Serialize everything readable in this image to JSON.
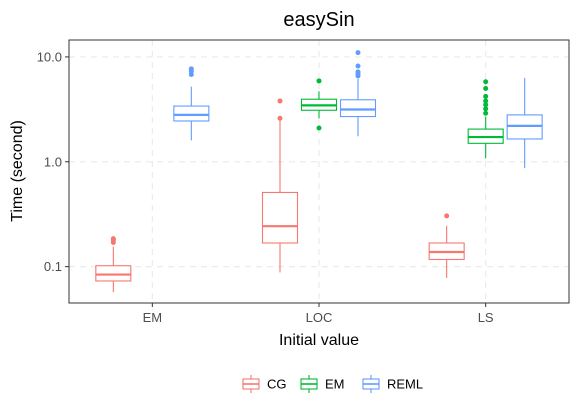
{
  "chart_data": {
    "type": "boxplot",
    "title": "easySin",
    "xlabel": "Initial value",
    "ylabel": "Time (second)",
    "yscale": "log10",
    "ylim": [
      0.045,
      14.5
    ],
    "yticks": [
      {
        "value": 10.0,
        "label": "10.0"
      },
      {
        "value": 1.0,
        "label": "1.0"
      },
      {
        "value": 0.1,
        "label": "0.1"
      }
    ],
    "categories": [
      "EM",
      "LOC",
      "LS"
    ],
    "grid": true,
    "legend_position": "bottom",
    "series": [
      {
        "name": "CG",
        "color": "#F8766D",
        "boxes": [
          {
            "category": "EM",
            "whisker_low": 0.057,
            "q1": 0.073,
            "median": 0.084,
            "q3": 0.102,
            "whisker_high": 0.155,
            "outliers": [
              0.17,
              0.18,
              0.185
            ]
          },
          {
            "category": "LOC",
            "whisker_low": 0.088,
            "q1": 0.168,
            "median": 0.243,
            "q3": 0.51,
            "whisker_high": 2.5,
            "outliers": [
              2.6,
              3.8
            ]
          },
          {
            "category": "LS",
            "whisker_low": 0.078,
            "q1": 0.117,
            "median": 0.138,
            "q3": 0.168,
            "whisker_high": 0.245,
            "outliers": [
              0.305
            ]
          }
        ]
      },
      {
        "name": "EM",
        "color": "#00BA38",
        "boxes": [
          {
            "category": "LOC",
            "whisker_low": 2.6,
            "q1": 3.1,
            "median": 3.45,
            "q3": 3.95,
            "whisker_high": 4.7,
            "outliers": [
              2.1,
              5.9
            ]
          },
          {
            "category": "LS",
            "whisker_low": 1.08,
            "q1": 1.5,
            "median": 1.72,
            "q3": 2.05,
            "whisker_high": 2.7,
            "outliers": [
              2.9,
              3.2,
              3.5,
              3.8,
              4.2,
              5.0,
              5.8
            ]
          }
        ]
      },
      {
        "name": "REML",
        "color": "#619CFF",
        "boxes": [
          {
            "category": "EM",
            "whisker_low": 1.6,
            "q1": 2.45,
            "median": 2.8,
            "q3": 3.4,
            "whisker_high": 5.2,
            "outliers": [
              6.8,
              7.3,
              7.7
            ]
          },
          {
            "category": "LOC",
            "whisker_low": 1.75,
            "q1": 2.7,
            "median": 3.15,
            "q3": 3.9,
            "whisker_high": 6.2,
            "outliers": [
              6.6,
              6.9,
              7.2,
              8.2,
              11.0
            ]
          },
          {
            "category": "LS",
            "whisker_low": 0.87,
            "q1": 1.65,
            "median": 2.2,
            "q3": 2.8,
            "whisker_high": 6.3,
            "outliers": []
          }
        ]
      }
    ]
  }
}
